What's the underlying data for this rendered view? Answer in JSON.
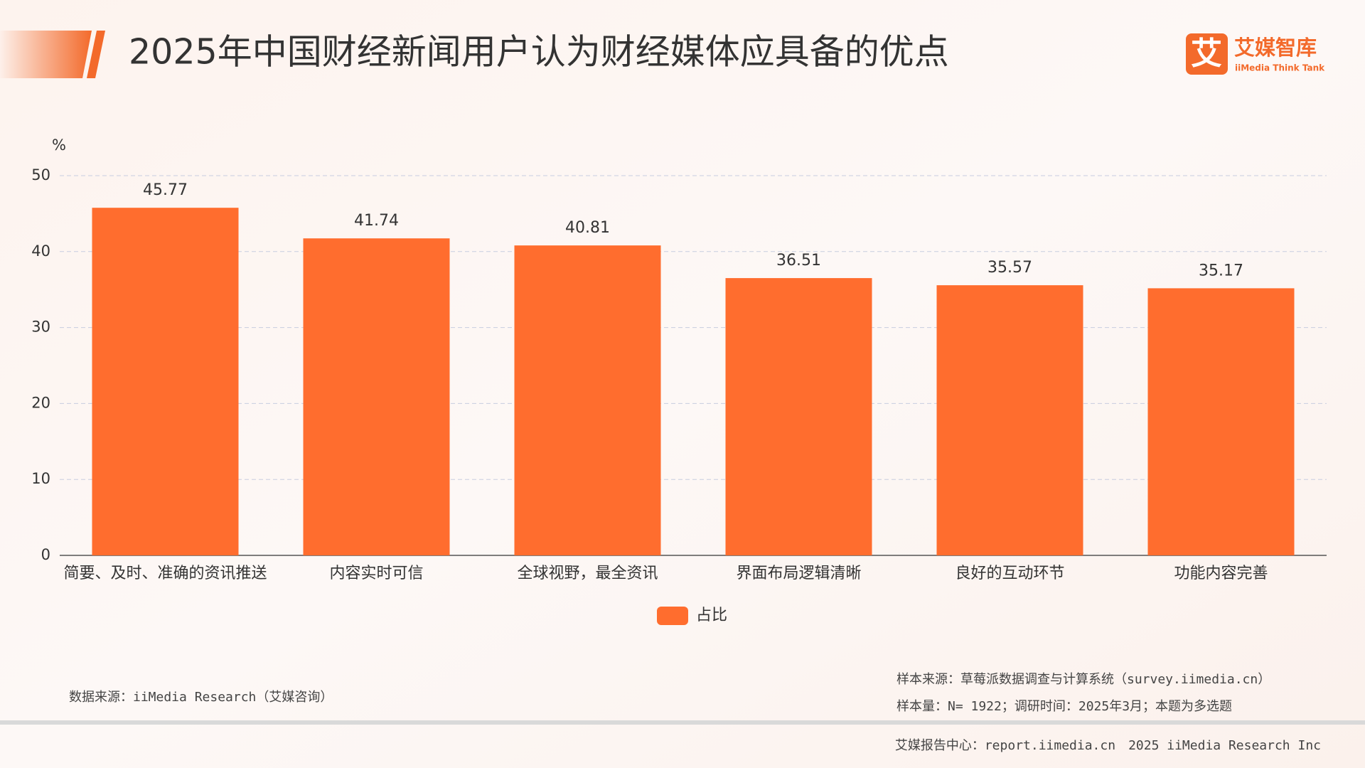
{
  "header": {
    "title": "2025年中国财经新闻用户认为财经媒体应具备的优点",
    "logo_name": "艾媒智库",
    "logo_sub": "iiMedia Think Tank",
    "logo_mark": "艾"
  },
  "chart_data": {
    "type": "bar",
    "y_unit": "%",
    "categories": [
      "简要、及时、准确的资讯推送",
      "内容实时可信",
      "全球视野，最全资讯",
      "界面布局逻辑清晰",
      "良好的互动环节",
      "功能内容完善"
    ],
    "series": [
      {
        "name": "占比",
        "color": "#ff6d2e",
        "values": [
          45.77,
          41.74,
          40.81,
          36.51,
          35.57,
          35.17
        ]
      }
    ],
    "ylim": [
      0,
      50
    ],
    "yticks": [
      0,
      10,
      20,
      30,
      40,
      50
    ],
    "grid": true
  },
  "footer": {
    "source": "数据来源：iiMedia Research（艾媒咨询）",
    "sample_source": "样本来源：草莓派数据调查与计算系统（survey.iimedia.cn）",
    "sample_size": "样本量：N= 1922；调研时间：2025年3月；本题为多选题",
    "report_center": "艾媒报告中心：report.iimedia.cn　2025 iiMedia Research Inc"
  }
}
